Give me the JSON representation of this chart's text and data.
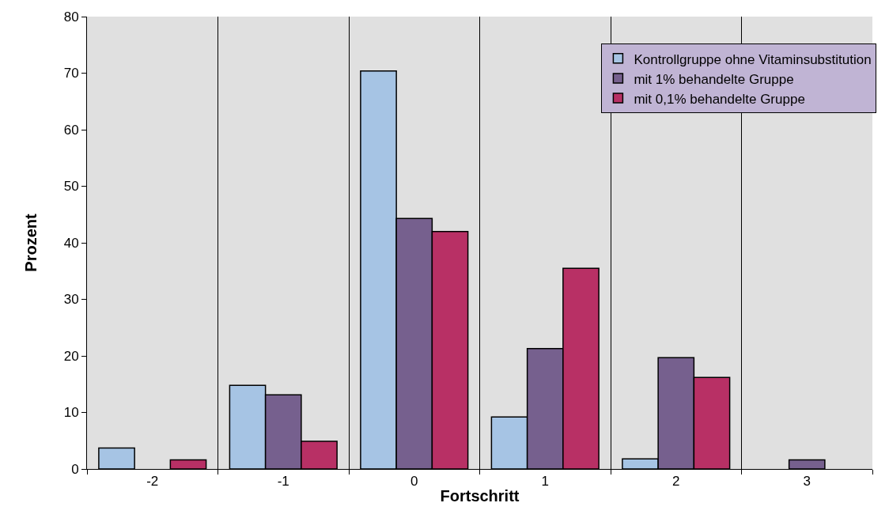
{
  "chart_data": {
    "type": "bar",
    "xlabel": "Fortschritt",
    "ylabel": "Prozent",
    "categories": [
      "-2",
      "-1",
      "0",
      "1",
      "2",
      "3"
    ],
    "series": [
      {
        "name": "Kontrollgruppe ohne Vitaminsubstitution",
        "color": "#a6c4e4",
        "values": [
          3.7,
          14.8,
          70.4,
          9.2,
          1.8,
          null
        ]
      },
      {
        "name": "mit 1% behandelte Gruppe",
        "color": "#76608e",
        "values": [
          null,
          13.1,
          44.3,
          21.3,
          19.7,
          1.6
        ]
      },
      {
        "name": "mit 0,1% behandelte Gruppe",
        "color": "#b83065",
        "values": [
          1.6,
          4.9,
          42.0,
          35.5,
          16.2,
          null
        ]
      }
    ],
    "ylim": [
      0,
      80
    ],
    "yticks": [
      0,
      10,
      20,
      30,
      40,
      50,
      60,
      70,
      80
    ],
    "grid": "x",
    "legend": "top right"
  }
}
